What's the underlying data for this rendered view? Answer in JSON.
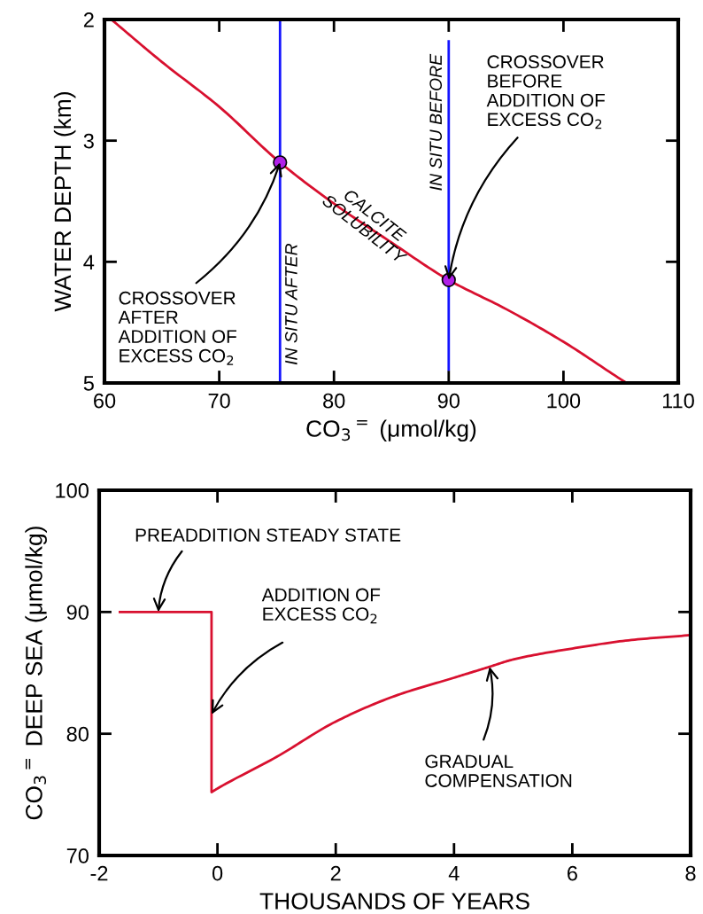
{
  "chart_data": [
    {
      "type": "line",
      "xlabel": "CO$_{3}$$^{=}$ (μmol/kg)",
      "ylabel": "WATER DEPTH (km)",
      "xlim": [
        60,
        110
      ],
      "xticks": [
        60,
        70,
        80,
        90,
        100,
        110
      ],
      "ylim": [
        5,
        2
      ],
      "yticks": [
        2,
        3,
        4,
        5
      ],
      "grid": false,
      "legend": false,
      "series": [
        {
          "type": "line",
          "color": "#d8102f",
          "x": [
            60.6,
            65,
            70,
            75.3,
            80,
            85,
            90,
            95,
            100,
            105,
            105.5
          ],
          "values": [
            2.0,
            2.35,
            2.72,
            3.18,
            3.52,
            3.84,
            4.15,
            4.39,
            4.66,
            4.97,
            5.0
          ]
        },
        {
          "type": "line",
          "color": "#1414ff",
          "x": [
            75.3,
            75.3
          ],
          "values": [
            2.0,
            5.0
          ]
        },
        {
          "type": "line",
          "color": "#1414ff",
          "x": [
            90,
            90
          ],
          "values": [
            2.18,
            4.89
          ]
        },
        {
          "type": "scatter",
          "color": "#b020e8",
          "marker": "circle",
          "x": [
            75.3,
            90
          ],
          "values": [
            3.18,
            4.15
          ]
        }
      ],
      "annotations": [
        {
          "text": "CROSSOVER\nAFTER\nADDITION OF\nEXCESS CO$_{2}$",
          "x": 75.3,
          "y": 3.18
        },
        {
          "text": "CROSSOVER\nBEFORE\nADDITION OF\nEXCESS CO$_{2}$",
          "x": 90,
          "y": 4.15
        },
        {
          "text": "CALCITE\nSOLUBILITY",
          "x": 83,
          "y": 3.68
        },
        {
          "text": "IN SITU AFTER",
          "x": 75.3,
          "y": 4.35
        },
        {
          "text": "IN SITU BEFORE",
          "x": 90,
          "y": 2.85
        }
      ]
    },
    {
      "type": "line",
      "xlabel": "THOUSANDS OF YEARS",
      "ylabel": "CO$_{3}$$^{=}$ DEEP SEA (μmol/kg)",
      "xlim": [
        -2,
        8
      ],
      "xticks": [
        -2,
        0,
        2,
        4,
        6,
        8
      ],
      "ylim": [
        70,
        100
      ],
      "yticks": [
        70,
        80,
        90,
        100
      ],
      "grid": false,
      "legend": false,
      "series": [
        {
          "type": "line",
          "color": "#d8102f",
          "x": [
            -1.65,
            -0.1,
            -0.1,
            0,
            1,
            2,
            3,
            4,
            4.6,
            5,
            6,
            7,
            8
          ],
          "values": [
            90,
            90,
            75.2,
            75.5,
            78.1,
            81.0,
            83.1,
            84.6,
            85.5,
            86.1,
            87.0,
            87.7,
            88.1
          ]
        }
      ],
      "annotations": [
        {
          "text": "PREADDITION STEADY STATE",
          "x": -1.0,
          "y": 90
        },
        {
          "text": "ADDITION OF\nEXCESS CO$_{2}$",
          "x": -0.1,
          "y": 81.6
        },
        {
          "text": "GRADUAL\nCOMPENSATION",
          "x": 4.6,
          "y": 85.5
        }
      ]
    }
  ]
}
